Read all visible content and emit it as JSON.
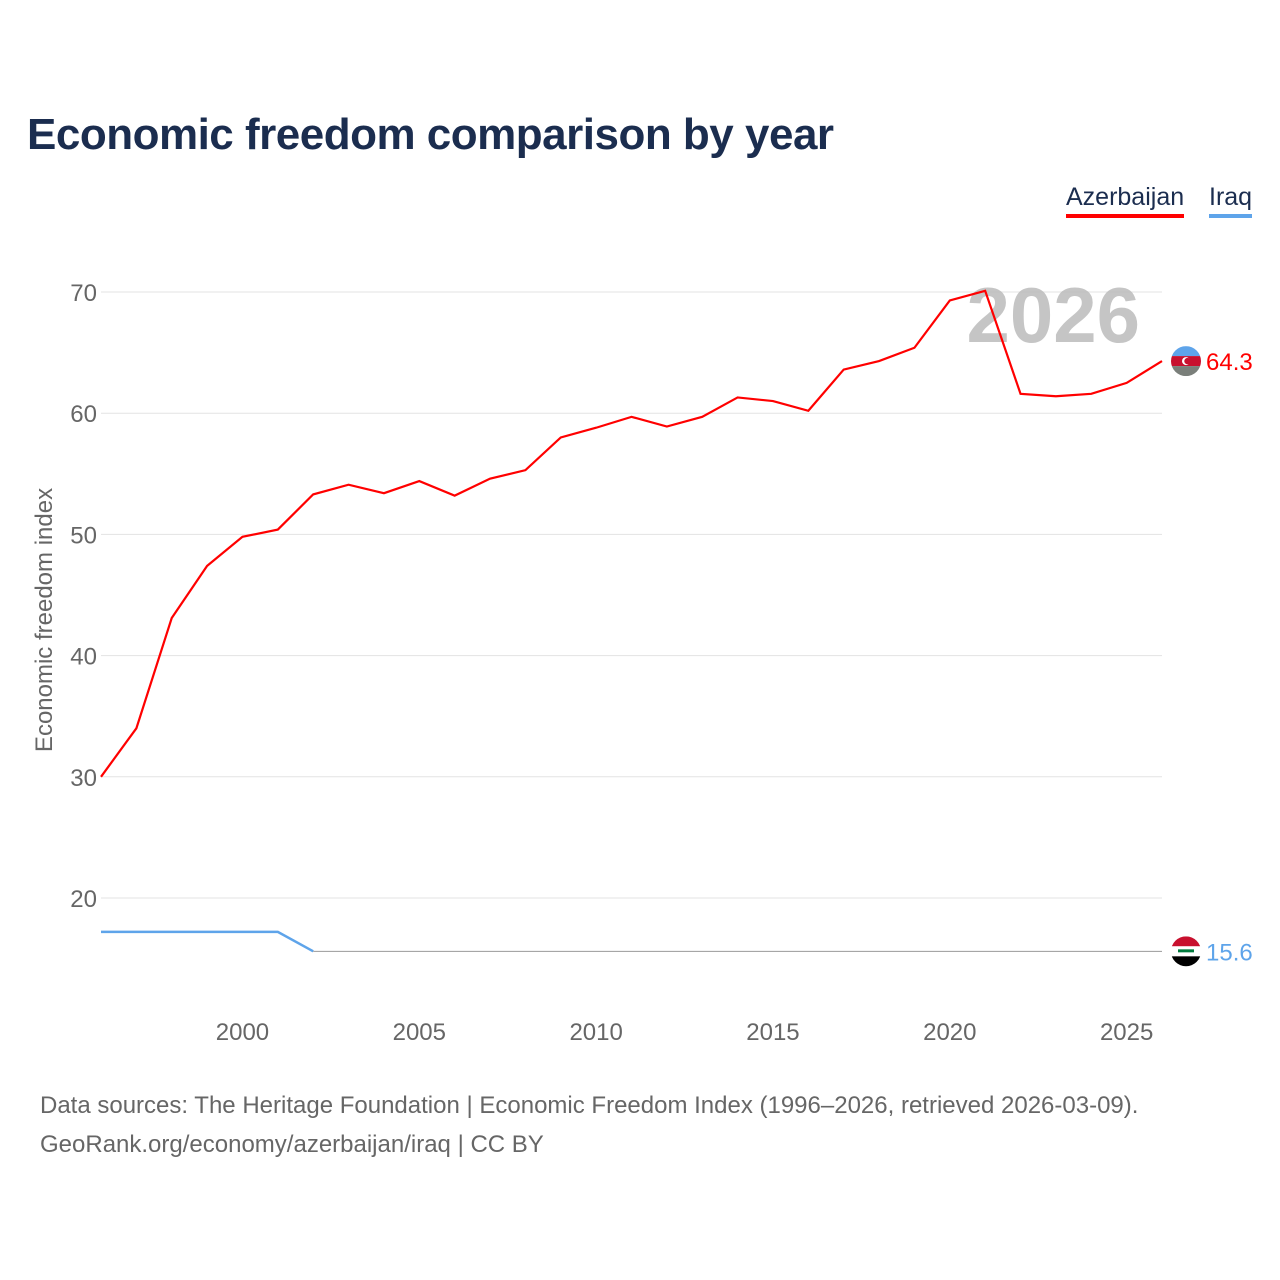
{
  "title": "Economic freedom comparison by year",
  "legend": [
    {
      "label": "Azerbaijan",
      "color": "#ff0000"
    },
    {
      "label": "Iraq",
      "color": "#5ea4ea"
    }
  ],
  "source_line1": "Data sources: The Heritage Foundation | Economic Freedom Index (1996–2026, retrieved 2026-03-09).",
  "source_line2": "GeoRank.org/economy/azerbaijan/iraq | CC BY",
  "chart_data": {
    "type": "line",
    "title": "Economic freedom comparison by year",
    "xlabel": "",
    "ylabel": "Economic freedom index",
    "current_year_label": "2026",
    "x": [
      1996,
      1997,
      1998,
      1999,
      2000,
      2001,
      2002,
      2003,
      2004,
      2005,
      2006,
      2007,
      2008,
      2009,
      2010,
      2011,
      2012,
      2013,
      2014,
      2015,
      2016,
      2017,
      2018,
      2019,
      2020,
      2021,
      2022,
      2023,
      2024,
      2025,
      2026
    ],
    "xlim": [
      1996,
      2026
    ],
    "ylim": [
      11,
      74
    ],
    "xticks": [
      2000,
      2005,
      2010,
      2015,
      2020,
      2025
    ],
    "yticks": [
      20,
      30,
      40,
      50,
      60,
      70
    ],
    "grid": true,
    "legend_position": "top-right",
    "series": [
      {
        "name": "Azerbaijan",
        "color": "#ff0000",
        "end_label": "64.3",
        "values": [
          30.0,
          34.0,
          43.1,
          47.4,
          49.8,
          50.4,
          53.3,
          54.1,
          53.4,
          54.4,
          53.2,
          54.6,
          55.3,
          58.0,
          58.8,
          59.7,
          58.9,
          59.7,
          61.3,
          61.0,
          60.2,
          63.6,
          64.3,
          65.4,
          69.3,
          70.1,
          61.6,
          61.4,
          61.6,
          62.5,
          64.3
        ]
      },
      {
        "name": "Iraq",
        "color": "#5ea4ea",
        "end_label": "15.6",
        "estimated_from_year": 2002,
        "estimated_color": "#999999",
        "values": [
          17.2,
          17.2,
          17.2,
          17.2,
          17.2,
          17.2,
          15.6,
          15.6,
          15.6,
          15.6,
          15.6,
          15.6,
          15.6,
          15.6,
          15.6,
          15.6,
          15.6,
          15.6,
          15.6,
          15.6,
          15.6,
          15.6,
          15.6,
          15.6,
          15.6,
          15.6,
          15.6,
          15.6,
          15.6,
          15.6,
          15.6
        ]
      }
    ]
  }
}
